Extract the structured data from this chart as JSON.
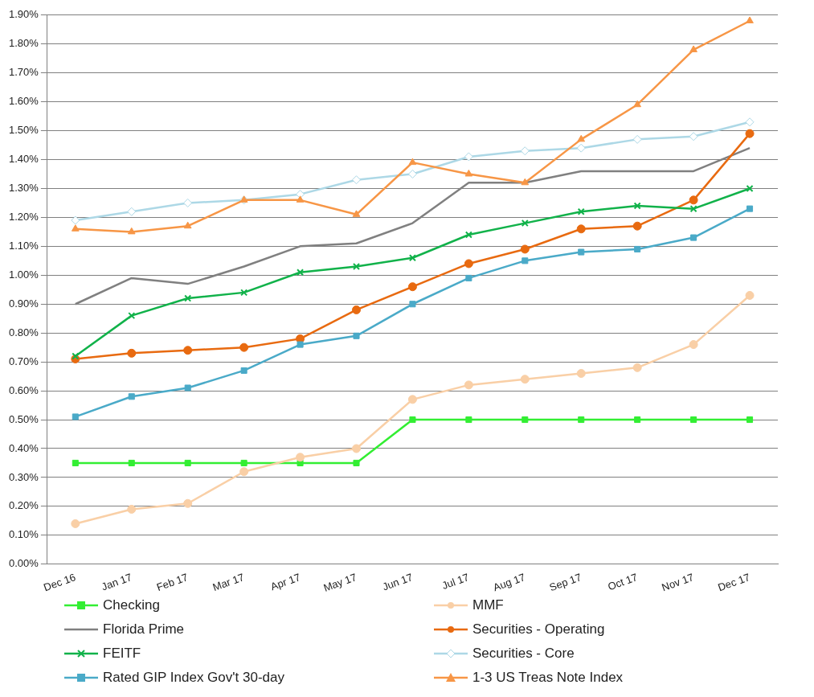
{
  "chart_data": {
    "type": "line",
    "categories": [
      "Dec 16",
      "Jan 17",
      "Feb 17",
      "Mar 17",
      "Apr 17",
      "May 17",
      "Jun 17",
      "Jul 17",
      "Aug 17",
      "Sep 17",
      "Oct 17",
      "Nov 17",
      "Dec 17"
    ],
    "ylim": [
      0,
      1.9
    ],
    "yticks": [
      {
        "value": 0,
        "label": "0.00%"
      },
      {
        "value": 0.1,
        "label": "0.10%"
      },
      {
        "value": 0.2,
        "label": "0.20%"
      },
      {
        "value": 0.3,
        "label": "0.30%"
      },
      {
        "value": 0.4,
        "label": "0.40%"
      },
      {
        "value": 0.5,
        "label": "0.50%"
      },
      {
        "value": 0.6,
        "label": "0.60%"
      },
      {
        "value": 0.7,
        "label": "0.70%"
      },
      {
        "value": 0.8,
        "label": "0.80%"
      },
      {
        "value": 0.9,
        "label": "0.90%"
      },
      {
        "value": 1.0,
        "label": "1.00%"
      },
      {
        "value": 1.1,
        "label": "1.10%"
      },
      {
        "value": 1.2,
        "label": "1.20%"
      },
      {
        "value": 1.3,
        "label": "1.30%"
      },
      {
        "value": 1.4,
        "label": "1.40%"
      },
      {
        "value": 1.5,
        "label": "1.50%"
      },
      {
        "value": 1.6,
        "label": "1.60%"
      },
      {
        "value": 1.7,
        "label": "1.70%"
      },
      {
        "value": 1.8,
        "label": "1.80%"
      },
      {
        "value": 1.9,
        "label": "1.90%"
      }
    ],
    "grid": "y",
    "legend": "bottom",
    "line_style": "solid",
    "series": [
      {
        "name": "Checking",
        "color": "#33ee33",
        "marker": "square",
        "values": [
          0.35,
          0.35,
          0.35,
          0.35,
          0.35,
          0.35,
          0.5,
          0.5,
          0.5,
          0.5,
          0.5,
          0.5,
          0.5
        ]
      },
      {
        "name": "MMF",
        "color": "#f9cfa6",
        "marker": "circle",
        "values": [
          0.14,
          0.19,
          0.21,
          0.32,
          0.37,
          0.4,
          0.57,
          0.62,
          0.64,
          0.66,
          0.68,
          0.76,
          0.93
        ]
      },
      {
        "name": "Florida Prime",
        "color": "#808080",
        "marker": "none",
        "values": [
          0.9,
          0.99,
          0.97,
          1.03,
          1.1,
          1.11,
          1.18,
          1.32,
          1.32,
          1.36,
          1.36,
          1.36,
          1.44
        ]
      },
      {
        "name": "Securities - Operating",
        "color": "#e86a10",
        "marker": "circle",
        "values": [
          0.71,
          0.73,
          0.74,
          0.75,
          0.78,
          0.88,
          0.96,
          1.04,
          1.09,
          1.16,
          1.17,
          1.26,
          1.49
        ]
      },
      {
        "name": "FEITF",
        "color": "#11b24a",
        "marker": "cross",
        "values": [
          0.72,
          0.86,
          0.92,
          0.94,
          1.01,
          1.03,
          1.06,
          1.14,
          1.18,
          1.22,
          1.24,
          1.23,
          1.3
        ]
      },
      {
        "name": "Securities - Core",
        "color": "#add8e6",
        "marker": "diamond",
        "values": [
          1.19,
          1.22,
          1.25,
          1.26,
          1.28,
          1.33,
          1.35,
          1.41,
          1.43,
          1.44,
          1.47,
          1.48,
          1.53
        ]
      },
      {
        "name": "Rated GIP Index Gov't 30-day",
        "color": "#4aaac8",
        "marker": "square",
        "values": [
          0.51,
          0.58,
          0.61,
          0.67,
          0.76,
          0.79,
          0.9,
          0.99,
          1.05,
          1.08,
          1.09,
          1.13,
          1.23
        ]
      },
      {
        "name": "1-3 US Treas Note Index",
        "color": "#f79646",
        "marker": "triangle",
        "values": [
          1.16,
          1.15,
          1.17,
          1.26,
          1.26,
          1.21,
          1.39,
          1.35,
          1.32,
          1.47,
          1.59,
          1.78,
          1.88
        ]
      }
    ]
  }
}
